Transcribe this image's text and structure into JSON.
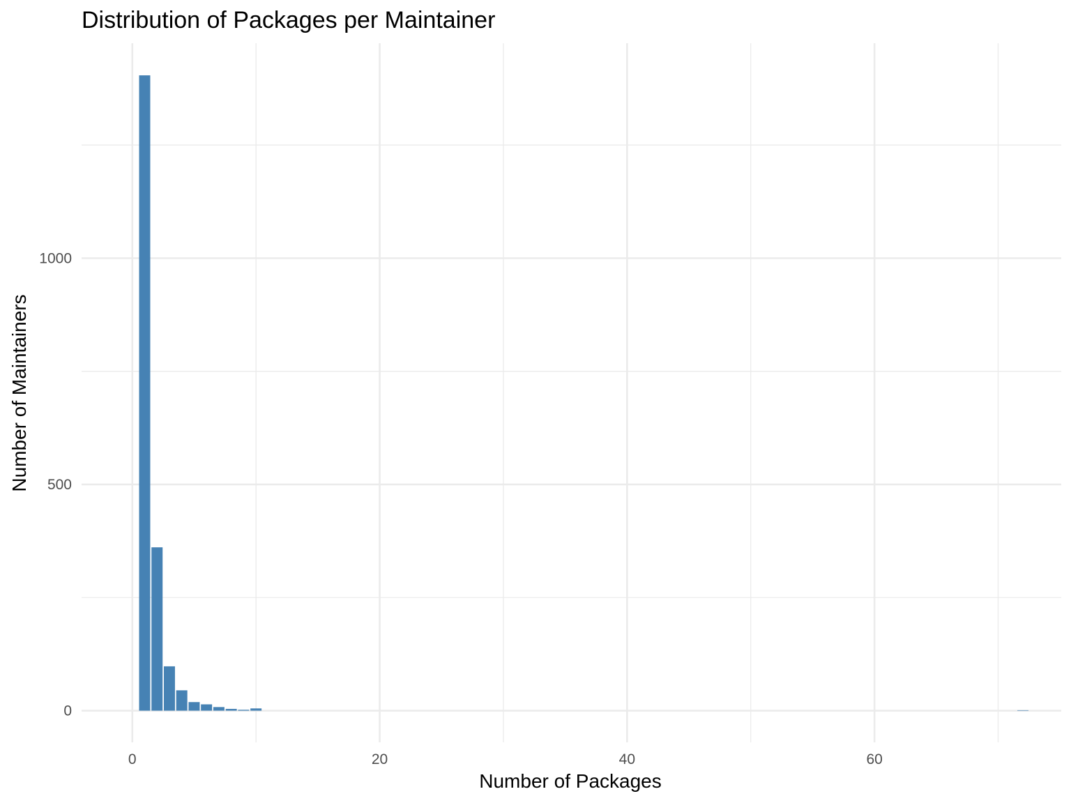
{
  "chart_data": {
    "type": "bar",
    "title": "Distribution of Packages per Maintainer",
    "xlabel": "Number of Packages",
    "ylabel": "Number of Maintainers",
    "xlim": [
      -4.1,
      75.1
    ],
    "ylim": [
      -70,
      1475
    ],
    "x_ticks": [
      0,
      20,
      40,
      60
    ],
    "x_tick_labels": [
      "0",
      "20",
      "40",
      "60"
    ],
    "y_ticks": [
      0,
      500,
      1000
    ],
    "y_tick_labels": [
      "0",
      "500",
      "1000"
    ],
    "grid": true,
    "bar_color": "#4682B4",
    "bar_width": 0.9,
    "bars": [
      {
        "x": 1,
        "y": 1404
      },
      {
        "x": 2,
        "y": 361
      },
      {
        "x": 3,
        "y": 98
      },
      {
        "x": 4,
        "y": 45
      },
      {
        "x": 5,
        "y": 19
      },
      {
        "x": 6,
        "y": 14
      },
      {
        "x": 7,
        "y": 8
      },
      {
        "x": 8,
        "y": 4
      },
      {
        "x": 9,
        "y": 2
      },
      {
        "x": 10,
        "y": 5
      },
      {
        "x": 72,
        "y": 1
      }
    ]
  }
}
